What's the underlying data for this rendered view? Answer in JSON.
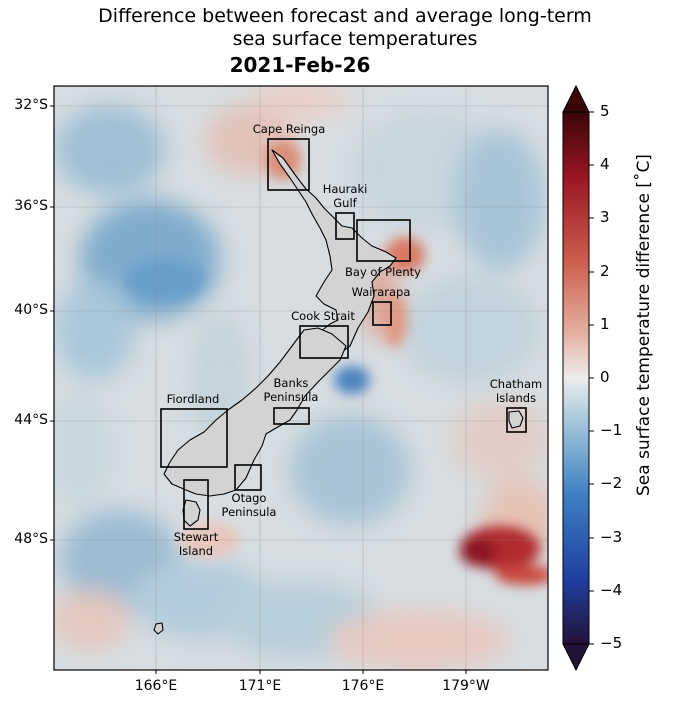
{
  "title_line1": "Difference between forecast and average long-term",
  "title_line2": "sea surface temperatures",
  "date": "2021-Feb-26",
  "lat_ticks": [
    "32°S",
    "36°S",
    "40°S",
    "44°S",
    "48°S"
  ],
  "lon_ticks": [
    "166°E",
    "171°E",
    "176°E",
    "179°W"
  ],
  "colorbar": {
    "label": "Sea surface temperature difference [$^\\circ$C]",
    "label_display": "Sea surface temperature difference [˚C]",
    "ticks": [
      "5",
      "4",
      "3",
      "2",
      "1",
      "0",
      "−1",
      "−2",
      "−3",
      "−4",
      "−5"
    ],
    "min": -5,
    "max": 5,
    "colors": [
      "#2a1040",
      "#1f3a9a",
      "#3b78c2",
      "#8fbbd6",
      "#e6e6e6",
      "#e8b2a2",
      "#cc5c4a",
      "#9b1525",
      "#3d0608"
    ]
  },
  "regions": [
    {
      "name": "Cape Reinga",
      "label_lines": [
        "Cape Reinga"
      ]
    },
    {
      "name": "Hauraki Gulf",
      "label_lines": [
        "Hauraki",
        "Gulf"
      ]
    },
    {
      "name": "Bay of Plenty",
      "label_lines": [
        "Bay of Plenty"
      ]
    },
    {
      "name": "Wairarapa",
      "label_lines": [
        "Wairarapa"
      ]
    },
    {
      "name": "Cook Strait",
      "label_lines": [
        "Cook Strait"
      ]
    },
    {
      "name": "Banks Peninsula",
      "label_lines": [
        "Banks",
        "Peninsula"
      ]
    },
    {
      "name": "Chatham Islands",
      "label_lines": [
        "Chatham",
        "Islands"
      ]
    },
    {
      "name": "Fiordland",
      "label_lines": [
        "Fiordland"
      ]
    },
    {
      "name": "Otago Peninsula",
      "label_lines": [
        "Otago",
        "Peninsula"
      ]
    },
    {
      "name": "Stewart Island",
      "label_lines": [
        "Stewart",
        "Island"
      ]
    }
  ]
}
